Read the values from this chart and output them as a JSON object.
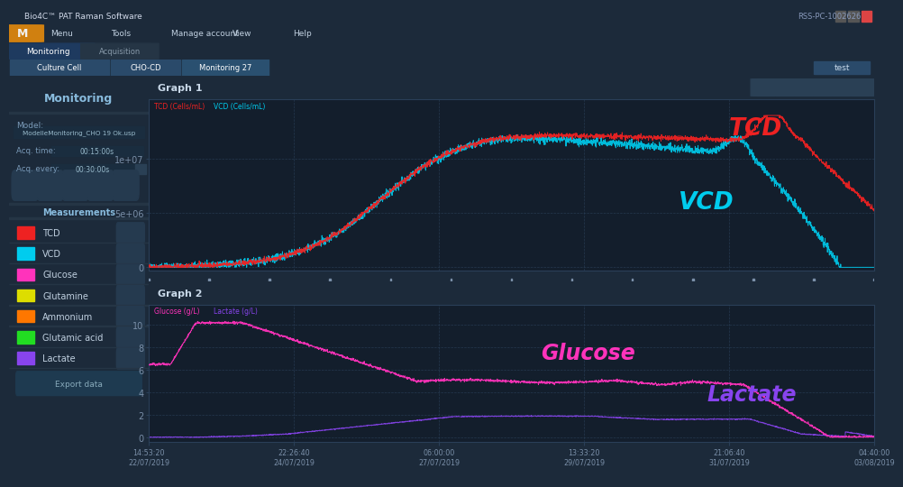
{
  "bg_outer": "#1c2a3a",
  "bg_titlebar": "#23232e",
  "bg_menubar": "#1e2535",
  "bg_tabbar": "#1a3a5c",
  "bg_sidebar": "#1e2d3e",
  "bg_plot": "#131e2c",
  "bg_graph_header": "#1e2d3e",
  "bg_separator": "#253444",
  "grid_color": "#2a3f58",
  "tick_color": "#7a8fa8",
  "title_color": "#c8d8e8",
  "tcd_color": "#ee2222",
  "vcd_color": "#00ccee",
  "glucose_color": "#ff33bb",
  "lactate_color": "#8844ee",
  "graph1_title": "Graph 1",
  "graph2_title": "Graph 2",
  "tcd_label": "TCD",
  "vcd_label": "VCD",
  "glucose_label": "Glucose",
  "lactate_label": "Lactate",
  "x_ticks_top": [
    "14:53:20",
    "22:26:40",
    "06:00:00",
    "13:33:20",
    "21:06:40",
    "04:40:00"
  ],
  "x_ticks_bot": [
    "22/07/2019",
    "24/07/2019",
    "27/07/2019",
    "29/07/2019",
    "31/07/2019",
    "03/08/2019"
  ],
  "window_title": "Bio4C™ PAT Raman Software",
  "pc_label": "RSS-PC-1002626",
  "sidebar_items": [
    "TCD",
    "VCD",
    "Glucose",
    "Glutamine",
    "Ammonium",
    "Glutamic acid",
    "Lactate"
  ],
  "sidebar_colors": [
    "#ee2222",
    "#00ccee",
    "#ff33bb",
    "#dddd00",
    "#ff7700",
    "#22dd22",
    "#8844ee"
  ],
  "model_label": "Model:",
  "model_name": "ModelleMonitoring_CHO 19 Ok.usp",
  "acq_time_label": "Acq. time:",
  "acq_every_label": "Acq. every:",
  "acq_time_val": "00:15:00s",
  "acq_every_val": "00:30:00s",
  "measurements_label": "Measurements",
  "monitoring_label": "Monitoring",
  "export_label": "Export data",
  "menu_items": [
    "Menu",
    "Tools",
    "Manage account",
    "View",
    "Help"
  ],
  "tab_items": [
    "Culture Cell",
    "CHO-CD",
    "Monitoring 27"
  ],
  "monitoring_tab": "Monitoring"
}
